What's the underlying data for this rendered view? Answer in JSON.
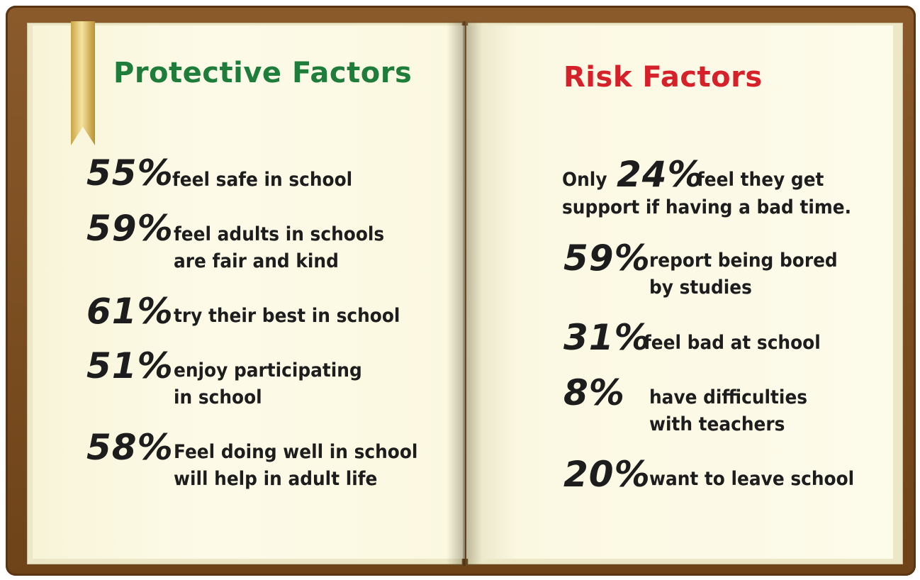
{
  "left": {
    "title": "Protective Factors",
    "items": [
      {
        "pct": "55%",
        "lines": [
          "feel safe in school"
        ]
      },
      {
        "pct": "59%",
        "lines": [
          "feel adults in schools",
          "are fair and kind"
        ]
      },
      {
        "pct": "61%",
        "lines": [
          "try their best in school"
        ]
      },
      {
        "pct": "51%",
        "lines": [
          "enjoy participating",
          "in school"
        ]
      },
      {
        "pct": "58%",
        "lines": [
          "Feel doing well in school",
          "will help in adult life"
        ]
      }
    ]
  },
  "right": {
    "title": "Risk Factors",
    "items": [
      {
        "prefix": "Only",
        "pct": "24%",
        "lines": [
          "feel they get",
          "support if having a bad time."
        ]
      },
      {
        "pct": "59%",
        "lines": [
          "report being bored",
          "by studies"
        ]
      },
      {
        "pct": "31%",
        "lines": [
          "feel bad at school"
        ]
      },
      {
        "pct": "8%",
        "lines": [
          "have difficulties",
          "with teachers"
        ]
      },
      {
        "pct": "20%",
        "lines": [
          "want to leave school"
        ]
      }
    ]
  }
}
